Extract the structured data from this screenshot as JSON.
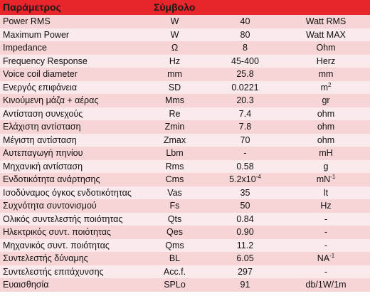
{
  "header": {
    "col_parameter": "Παράμετρος",
    "col_symbol": "Σύμβολο"
  },
  "rows": [
    {
      "name": "Power RMS",
      "symbol": "W",
      "value": "40",
      "unit": "Watt RMS"
    },
    {
      "name": "Maximum Power",
      "symbol": "W",
      "value": "80",
      "unit": "Watt MAX"
    },
    {
      "name": "Impedance",
      "symbol": "Ω",
      "value": "8",
      "unit": "Ohm"
    },
    {
      "name": "Frequency Response",
      "symbol": "Hz",
      "value": "45-400",
      "unit": "Herz"
    },
    {
      "name": "Voice coil diameter",
      "symbol": "mm",
      "value": "25.8",
      "unit": "mm"
    },
    {
      "name": "Ενεργός επιφάνεια",
      "symbol": "SD",
      "value": "0.0221",
      "unit": "m",
      "unit_sup": "2"
    },
    {
      "name": "Κινούμενη μάζα + αέρας",
      "symbol": "Mms",
      "value": "20.3",
      "unit": "gr"
    },
    {
      "name": "Αντίσταση συνεχούς",
      "symbol": "Re",
      "value": "7.4",
      "unit": "ohm"
    },
    {
      "name": "Ελάχιστη αντίσταση",
      "symbol": "Zmin",
      "value": "7.8",
      "unit": "ohm"
    },
    {
      "name": "Μέγιστη αντίσταση",
      "symbol": "Zmax",
      "value": "70",
      "unit": "ohm"
    },
    {
      "name": "Αυτεπαγωγή πηνίου",
      "symbol": "Lbm",
      "value": "-",
      "unit": "mH"
    },
    {
      "name": "Μηχανική αντίσταση",
      "symbol": "Rms",
      "value": "0.58",
      "unit": "g"
    },
    {
      "name": "Ενδοτικότητα ανάρτησης",
      "symbol": "Cms",
      "value": "5.2x10",
      "value_sup": "-4",
      "unit": "mN",
      "unit_sup": "-1"
    },
    {
      "name": "Ισοδύναμος όγκος ενδοτικότητας",
      "symbol": "Vas",
      "value": "35",
      "unit": "lt"
    },
    {
      "name": "Συχνότητα συντονισμού",
      "symbol": "Fs",
      "value": "50",
      "unit": "Hz"
    },
    {
      "name": "Ολικός συντελεστής ποιότητας",
      "symbol": "Qts",
      "value": "0.84",
      "unit": "-"
    },
    {
      "name": "Ηλεκτρικός συντ. ποιότητας",
      "symbol": "Qes",
      "value": "0.90",
      "unit": "-"
    },
    {
      "name": "Μηχανικός συντ. ποιότητας",
      "symbol": "Qms",
      "value": "11.2",
      "unit": "-"
    },
    {
      "name": "Συντελεστής δύναμης",
      "symbol": "BL",
      "value": "6.05",
      "unit": "NA",
      "unit_sup": "-1"
    },
    {
      "name": "Συντελεστής επιτάχυνσης",
      "symbol": "Acc.f.",
      "value": "297",
      "unit": "-"
    },
    {
      "name": "Ευαισθησία",
      "symbol": "SPLo",
      "value": "91",
      "unit": "db/1W/1m"
    }
  ]
}
